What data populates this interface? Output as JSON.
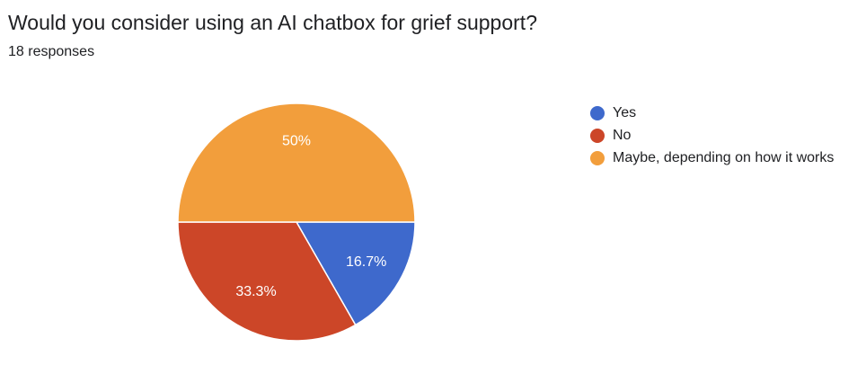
{
  "header": {
    "question": "Would you consider using an AI chatbox for grief support?",
    "responses": "18 responses"
  },
  "chart_data": {
    "type": "pie",
    "title": "Would you consider using an AI chatbox for grief support?",
    "total_responses": 18,
    "slices": [
      {
        "label": "Yes",
        "value": 16.7,
        "count": 3,
        "display": "16.7%",
        "color": "#3e69cc"
      },
      {
        "label": "No",
        "value": 33.3,
        "count": 6,
        "display": "33.3%",
        "color": "#cc4628"
      },
      {
        "label": "Maybe, depending on how it works",
        "value": 50,
        "count": 9,
        "display": "50%",
        "color": "#f29e3c"
      }
    ],
    "start_angle": "3 o'clock, clockwise",
    "legend_position": "right"
  }
}
